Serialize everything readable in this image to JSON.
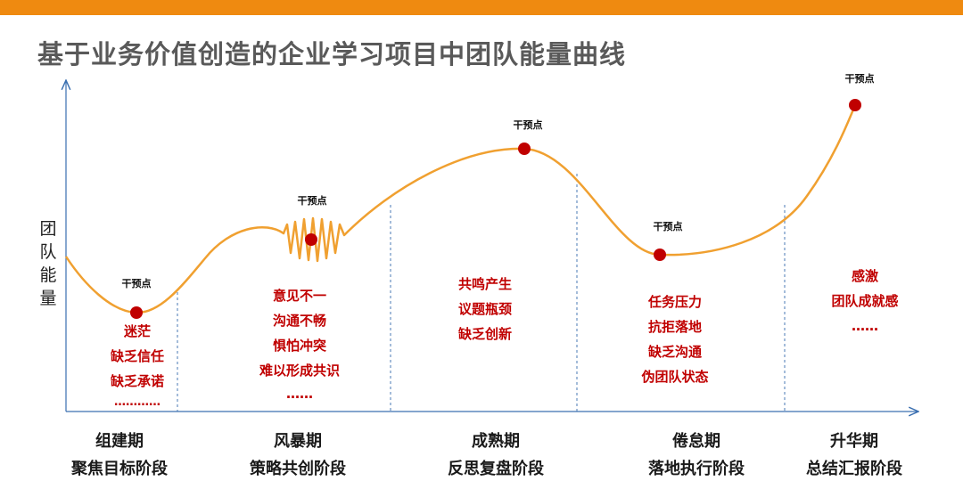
{
  "title": "基于业务价值创造的企业学习项目中团队能量曲线",
  "y_axis_label": "团队能量",
  "colors": {
    "top_bar": "#ef8a10",
    "curve": "#f0a030",
    "point": "#c00000",
    "desc_text": "#c00000"
  },
  "intervention_label": "干预点",
  "phases": [
    {
      "name": "组建期",
      "stage": "聚焦目标阶段",
      "notes": [
        "迷茫",
        "缺乏信任",
        "缺乏承诺",
        "…………"
      ]
    },
    {
      "name": "风暴期",
      "stage": "策略共创阶段",
      "notes": [
        "意见不一",
        "沟通不畅",
        "惧怕冲突",
        "难以形成共识",
        "……"
      ]
    },
    {
      "name": "成熟期",
      "stage": "反思复盘阶段",
      "notes": [
        "共鸣产生",
        "议题瓶颈",
        "缺乏创新"
      ]
    },
    {
      "name": "倦怠期",
      "stage": "落地执行阶段",
      "notes": [
        "任务压力",
        "抗拒落地",
        "缺乏沟通",
        "伪团队状态"
      ]
    },
    {
      "name": "升华期",
      "stage": "总结汇报阶段",
      "notes": [
        "感激",
        "团队成就感",
        "……"
      ]
    }
  ]
}
